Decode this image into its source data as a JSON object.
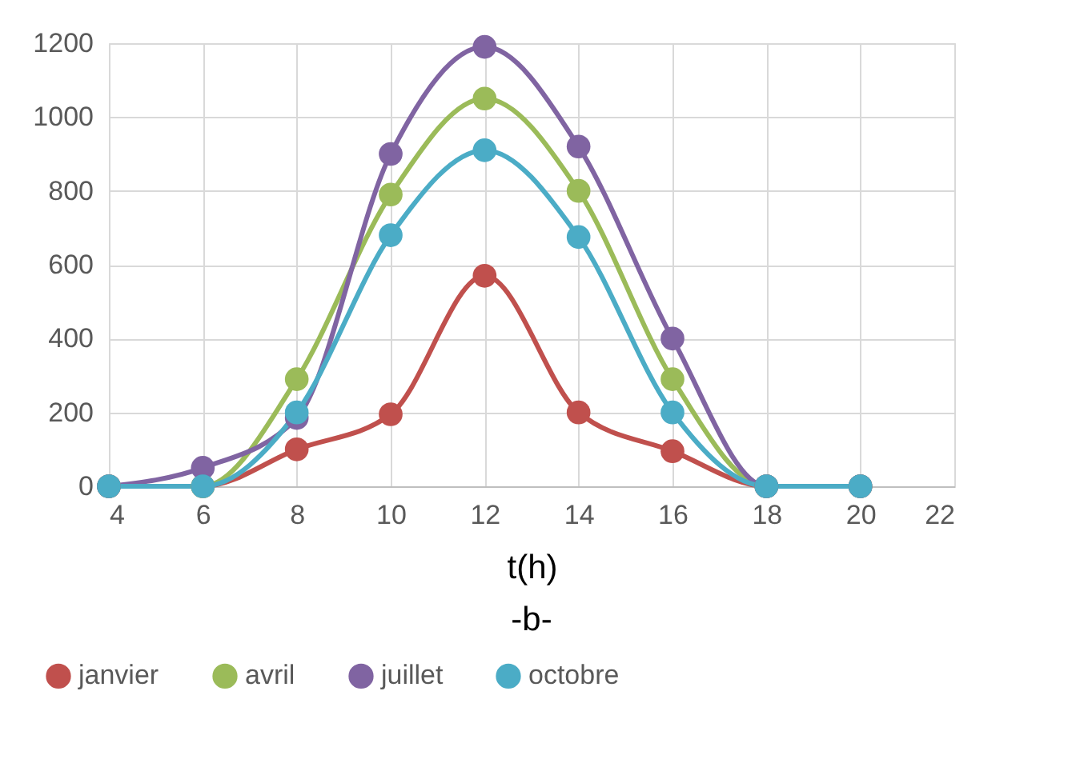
{
  "chart_data": {
    "type": "line",
    "xlabel": "t(h)",
    "annotations": [
      "-b-"
    ],
    "x": [
      4,
      6,
      8,
      10,
      12,
      14,
      16,
      18,
      20
    ],
    "series": [
      {
        "name": "janvier",
        "color": "#c0504d",
        "values": [
          0,
          0,
          100,
          195,
          570,
          200,
          95,
          0,
          0
        ]
      },
      {
        "name": "avril",
        "color": "#9bbb59",
        "values": [
          0,
          0,
          290,
          790,
          1050,
          800,
          290,
          0,
          0
        ]
      },
      {
        "name": "juillet",
        "color": "#8064a2",
        "values": [
          0,
          50,
          185,
          900,
          1190,
          920,
          400,
          0,
          0
        ]
      },
      {
        "name": "octobre",
        "color": "#4bacc6",
        "values": [
          0,
          0,
          200,
          680,
          910,
          675,
          200,
          0,
          0
        ]
      }
    ],
    "xlim": [
      4,
      22
    ],
    "xticks": [
      4,
      6,
      8,
      10,
      12,
      14,
      16,
      18,
      20,
      22
    ],
    "ylim": [
      0,
      1200
    ],
    "yticks": [
      0,
      200,
      400,
      600,
      800,
      1000,
      1200
    ],
    "grid": true,
    "legend": "bottom",
    "marker": "circle",
    "line_style": "solid"
  }
}
